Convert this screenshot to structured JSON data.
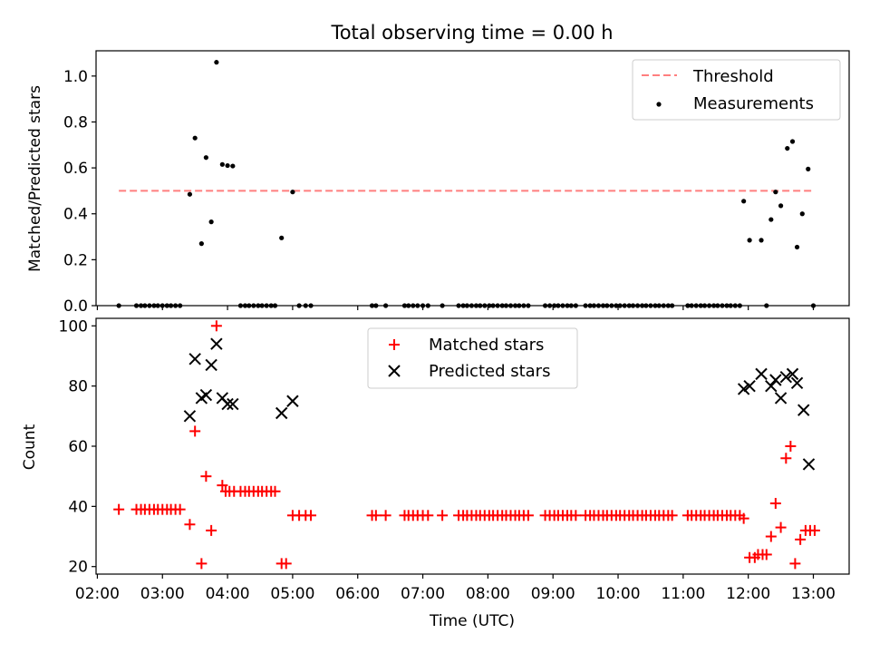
{
  "figure_title": "Total observing time = 0.00 h",
  "chart_data": [
    {
      "type": "scatter",
      "panel": "top",
      "title": "Total observing time = 0.00 h",
      "xlabel": "",
      "ylabel": "Matched/Predicted stars",
      "xlim": [
        1.98,
        13.55
      ],
      "ylim": [
        0.0,
        1.11
      ],
      "yticks": [
        0.0,
        0.2,
        0.4,
        0.6,
        0.8,
        1.0
      ],
      "ytick_labels": [
        "0.0",
        "0.2",
        "0.4",
        "0.6",
        "0.8",
        "1.0"
      ],
      "legend_placement": "upper right",
      "legend": [
        {
          "label": "Threshold",
          "style": "dashed-line",
          "color": "#ff7f7f"
        },
        {
          "label": "Measurements",
          "style": "dot",
          "color": "#000000"
        }
      ],
      "threshold": {
        "name": "Threshold",
        "value": 0.5,
        "x": [
          2.33,
          13.0
        ],
        "color": "#ff7f7f"
      },
      "series": [
        {
          "name": "Measurements",
          "color": "#000000",
          "points": [
            [
              2.33,
              0
            ],
            [
              2.6,
              0
            ],
            [
              2.67,
              0
            ],
            [
              2.73,
              0
            ],
            [
              2.8,
              0
            ],
            [
              2.87,
              0
            ],
            [
              2.93,
              0
            ],
            [
              3.0,
              0
            ],
            [
              3.07,
              0
            ],
            [
              3.13,
              0
            ],
            [
              3.2,
              0
            ],
            [
              3.27,
              0
            ],
            [
              3.42,
              0.485
            ],
            [
              3.5,
              0.73
            ],
            [
              3.6,
              0.27
            ],
            [
              3.67,
              0.645
            ],
            [
              3.75,
              0.365
            ],
            [
              3.83,
              1.06
            ],
            [
              3.92,
              0.615
            ],
            [
              4.0,
              0.61
            ],
            [
              4.08,
              0.608
            ],
            [
              4.2,
              0
            ],
            [
              4.27,
              0
            ],
            [
              4.33,
              0
            ],
            [
              4.4,
              0
            ],
            [
              4.47,
              0
            ],
            [
              4.53,
              0
            ],
            [
              4.6,
              0
            ],
            [
              4.67,
              0
            ],
            [
              4.73,
              0
            ],
            [
              4.83,
              0.295
            ],
            [
              5.0,
              0.495
            ],
            [
              5.1,
              0
            ],
            [
              5.2,
              0
            ],
            [
              5.28,
              0
            ],
            [
              6.22,
              0
            ],
            [
              6.28,
              0
            ],
            [
              6.43,
              0
            ],
            [
              6.72,
              0
            ],
            [
              6.78,
              0
            ],
            [
              6.85,
              0
            ],
            [
              6.92,
              0
            ],
            [
              7.0,
              0
            ],
            [
              7.08,
              0
            ],
            [
              7.3,
              0
            ],
            [
              7.55,
              0
            ],
            [
              7.62,
              0
            ],
            [
              7.68,
              0
            ],
            [
              7.75,
              0
            ],
            [
              7.82,
              0
            ],
            [
              7.88,
              0
            ],
            [
              7.95,
              0
            ],
            [
              8.02,
              0
            ],
            [
              8.08,
              0
            ],
            [
              8.15,
              0
            ],
            [
              8.22,
              0
            ],
            [
              8.28,
              0
            ],
            [
              8.35,
              0
            ],
            [
              8.42,
              0
            ],
            [
              8.48,
              0
            ],
            [
              8.55,
              0
            ],
            [
              8.62,
              0
            ],
            [
              8.88,
              0
            ],
            [
              8.95,
              0
            ],
            [
              9.02,
              0
            ],
            [
              9.08,
              0
            ],
            [
              9.15,
              0
            ],
            [
              9.22,
              0
            ],
            [
              9.28,
              0
            ],
            [
              9.35,
              0
            ],
            [
              9.5,
              0
            ],
            [
              9.57,
              0
            ],
            [
              9.63,
              0
            ],
            [
              9.7,
              0
            ],
            [
              9.77,
              0
            ],
            [
              9.83,
              0
            ],
            [
              9.9,
              0
            ],
            [
              9.97,
              0
            ],
            [
              10.03,
              0
            ],
            [
              10.1,
              0
            ],
            [
              10.17,
              0
            ],
            [
              10.23,
              0
            ],
            [
              10.3,
              0
            ],
            [
              10.37,
              0
            ],
            [
              10.43,
              0
            ],
            [
              10.5,
              0
            ],
            [
              10.57,
              0
            ],
            [
              10.63,
              0
            ],
            [
              10.7,
              0
            ],
            [
              10.77,
              0
            ],
            [
              10.83,
              0
            ],
            [
              11.07,
              0
            ],
            [
              11.13,
              0
            ],
            [
              11.2,
              0
            ],
            [
              11.27,
              0
            ],
            [
              11.33,
              0
            ],
            [
              11.4,
              0
            ],
            [
              11.47,
              0
            ],
            [
              11.53,
              0
            ],
            [
              11.6,
              0
            ],
            [
              11.67,
              0
            ],
            [
              11.73,
              0
            ],
            [
              11.8,
              0
            ],
            [
              11.87,
              0
            ],
            [
              11.93,
              0.455
            ],
            [
              12.02,
              0.285
            ],
            [
              12.2,
              0.285
            ],
            [
              12.28,
              0
            ],
            [
              12.35,
              0.375
            ],
            [
              12.42,
              0.495
            ],
            [
              12.5,
              0.435
            ],
            [
              12.6,
              0.685
            ],
            [
              12.68,
              0.715
            ],
            [
              12.75,
              0.255
            ],
            [
              12.83,
              0.4
            ],
            [
              12.92,
              0.595
            ],
            [
              13.0,
              0
            ]
          ]
        }
      ]
    },
    {
      "type": "scatter",
      "panel": "bottom",
      "title": "",
      "xlabel": "Time (UTC)",
      "ylabel": "Count",
      "xlim": [
        1.98,
        13.55
      ],
      "ylim": [
        17.5,
        102.5
      ],
      "xticks": [
        2,
        3,
        4,
        5,
        6,
        7,
        8,
        9,
        10,
        11,
        12,
        13
      ],
      "xtick_labels": [
        "02:00",
        "03:00",
        "04:00",
        "05:00",
        "06:00",
        "07:00",
        "08:00",
        "09:00",
        "10:00",
        "11:00",
        "12:00",
        "13:00"
      ],
      "yticks": [
        20,
        40,
        60,
        80,
        100
      ],
      "ytick_labels": [
        "20",
        "40",
        "60",
        "80",
        "100"
      ],
      "legend_placement": "upper center",
      "series": [
        {
          "name": "Matched stars",
          "marker": "+",
          "color": "#ff0000",
          "points": [
            [
              2.33,
              39
            ],
            [
              2.6,
              39
            ],
            [
              2.67,
              39
            ],
            [
              2.73,
              39
            ],
            [
              2.8,
              39
            ],
            [
              2.87,
              39
            ],
            [
              2.93,
              39
            ],
            [
              3.0,
              39
            ],
            [
              3.07,
              39
            ],
            [
              3.13,
              39
            ],
            [
              3.2,
              39
            ],
            [
              3.27,
              39
            ],
            [
              3.42,
              34
            ],
            [
              3.5,
              65
            ],
            [
              3.6,
              21
            ],
            [
              3.67,
              50
            ],
            [
              3.75,
              32
            ],
            [
              3.83,
              100
            ],
            [
              3.92,
              47
            ],
            [
              3.97,
              45
            ],
            [
              4.03,
              45
            ],
            [
              4.1,
              45
            ],
            [
              4.2,
              45
            ],
            [
              4.27,
              45
            ],
            [
              4.33,
              45
            ],
            [
              4.4,
              45
            ],
            [
              4.47,
              45
            ],
            [
              4.53,
              45
            ],
            [
              4.6,
              45
            ],
            [
              4.67,
              45
            ],
            [
              4.73,
              45
            ],
            [
              4.83,
              21
            ],
            [
              4.9,
              21
            ],
            [
              5.0,
              37
            ],
            [
              5.1,
              37
            ],
            [
              5.2,
              37
            ],
            [
              5.28,
              37
            ],
            [
              6.22,
              37
            ],
            [
              6.28,
              37
            ],
            [
              6.43,
              37
            ],
            [
              6.72,
              37
            ],
            [
              6.78,
              37
            ],
            [
              6.85,
              37
            ],
            [
              6.92,
              37
            ],
            [
              7.0,
              37
            ],
            [
              7.08,
              37
            ],
            [
              7.3,
              37
            ],
            [
              7.55,
              37
            ],
            [
              7.62,
              37
            ],
            [
              7.68,
              37
            ],
            [
              7.75,
              37
            ],
            [
              7.82,
              37
            ],
            [
              7.88,
              37
            ],
            [
              7.95,
              37
            ],
            [
              8.02,
              37
            ],
            [
              8.08,
              37
            ],
            [
              8.15,
              37
            ],
            [
              8.22,
              37
            ],
            [
              8.28,
              37
            ],
            [
              8.35,
              37
            ],
            [
              8.42,
              37
            ],
            [
              8.48,
              37
            ],
            [
              8.55,
              37
            ],
            [
              8.62,
              37
            ],
            [
              8.88,
              37
            ],
            [
              8.95,
              37
            ],
            [
              9.02,
              37
            ],
            [
              9.08,
              37
            ],
            [
              9.15,
              37
            ],
            [
              9.22,
              37
            ],
            [
              9.28,
              37
            ],
            [
              9.35,
              37
            ],
            [
              9.5,
              37
            ],
            [
              9.57,
              37
            ],
            [
              9.63,
              37
            ],
            [
              9.7,
              37
            ],
            [
              9.77,
              37
            ],
            [
              9.83,
              37
            ],
            [
              9.9,
              37
            ],
            [
              9.97,
              37
            ],
            [
              10.03,
              37
            ],
            [
              10.1,
              37
            ],
            [
              10.17,
              37
            ],
            [
              10.23,
              37
            ],
            [
              10.3,
              37
            ],
            [
              10.37,
              37
            ],
            [
              10.43,
              37
            ],
            [
              10.5,
              37
            ],
            [
              10.57,
              37
            ],
            [
              10.63,
              37
            ],
            [
              10.7,
              37
            ],
            [
              10.77,
              37
            ],
            [
              10.83,
              37
            ],
            [
              11.07,
              37
            ],
            [
              11.13,
              37
            ],
            [
              11.2,
              37
            ],
            [
              11.27,
              37
            ],
            [
              11.33,
              37
            ],
            [
              11.4,
              37
            ],
            [
              11.47,
              37
            ],
            [
              11.53,
              37
            ],
            [
              11.6,
              37
            ],
            [
              11.67,
              37
            ],
            [
              11.73,
              37
            ],
            [
              11.8,
              37
            ],
            [
              11.87,
              37
            ],
            [
              11.93,
              36
            ],
            [
              12.02,
              23
            ],
            [
              12.1,
              23
            ],
            [
              12.15,
              24
            ],
            [
              12.22,
              24
            ],
            [
              12.28,
              24
            ],
            [
              12.35,
              30
            ],
            [
              12.42,
              41
            ],
            [
              12.5,
              33
            ],
            [
              12.58,
              56
            ],
            [
              12.65,
              60
            ],
            [
              12.72,
              21
            ],
            [
              12.8,
              29
            ],
            [
              12.88,
              32
            ],
            [
              12.95,
              32
            ],
            [
              13.02,
              32
            ]
          ]
        },
        {
          "name": "Predicted stars",
          "marker": "x",
          "color": "#000000",
          "points": [
            [
              3.42,
              70
            ],
            [
              3.5,
              89
            ],
            [
              3.6,
              76
            ],
            [
              3.67,
              77
            ],
            [
              3.75,
              87
            ],
            [
              3.83,
              94
            ],
            [
              3.92,
              76
            ],
            [
              4.0,
              74
            ],
            [
              4.08,
              74
            ],
            [
              4.83,
              71
            ],
            [
              5.0,
              75
            ],
            [
              11.93,
              79
            ],
            [
              12.02,
              80
            ],
            [
              12.2,
              84
            ],
            [
              12.35,
              80
            ],
            [
              12.42,
              82
            ],
            [
              12.5,
              76
            ],
            [
              12.58,
              83
            ],
            [
              12.68,
              84
            ],
            [
              12.75,
              81
            ],
            [
              12.85,
              72
            ],
            [
              12.93,
              54
            ]
          ]
        }
      ]
    }
  ]
}
